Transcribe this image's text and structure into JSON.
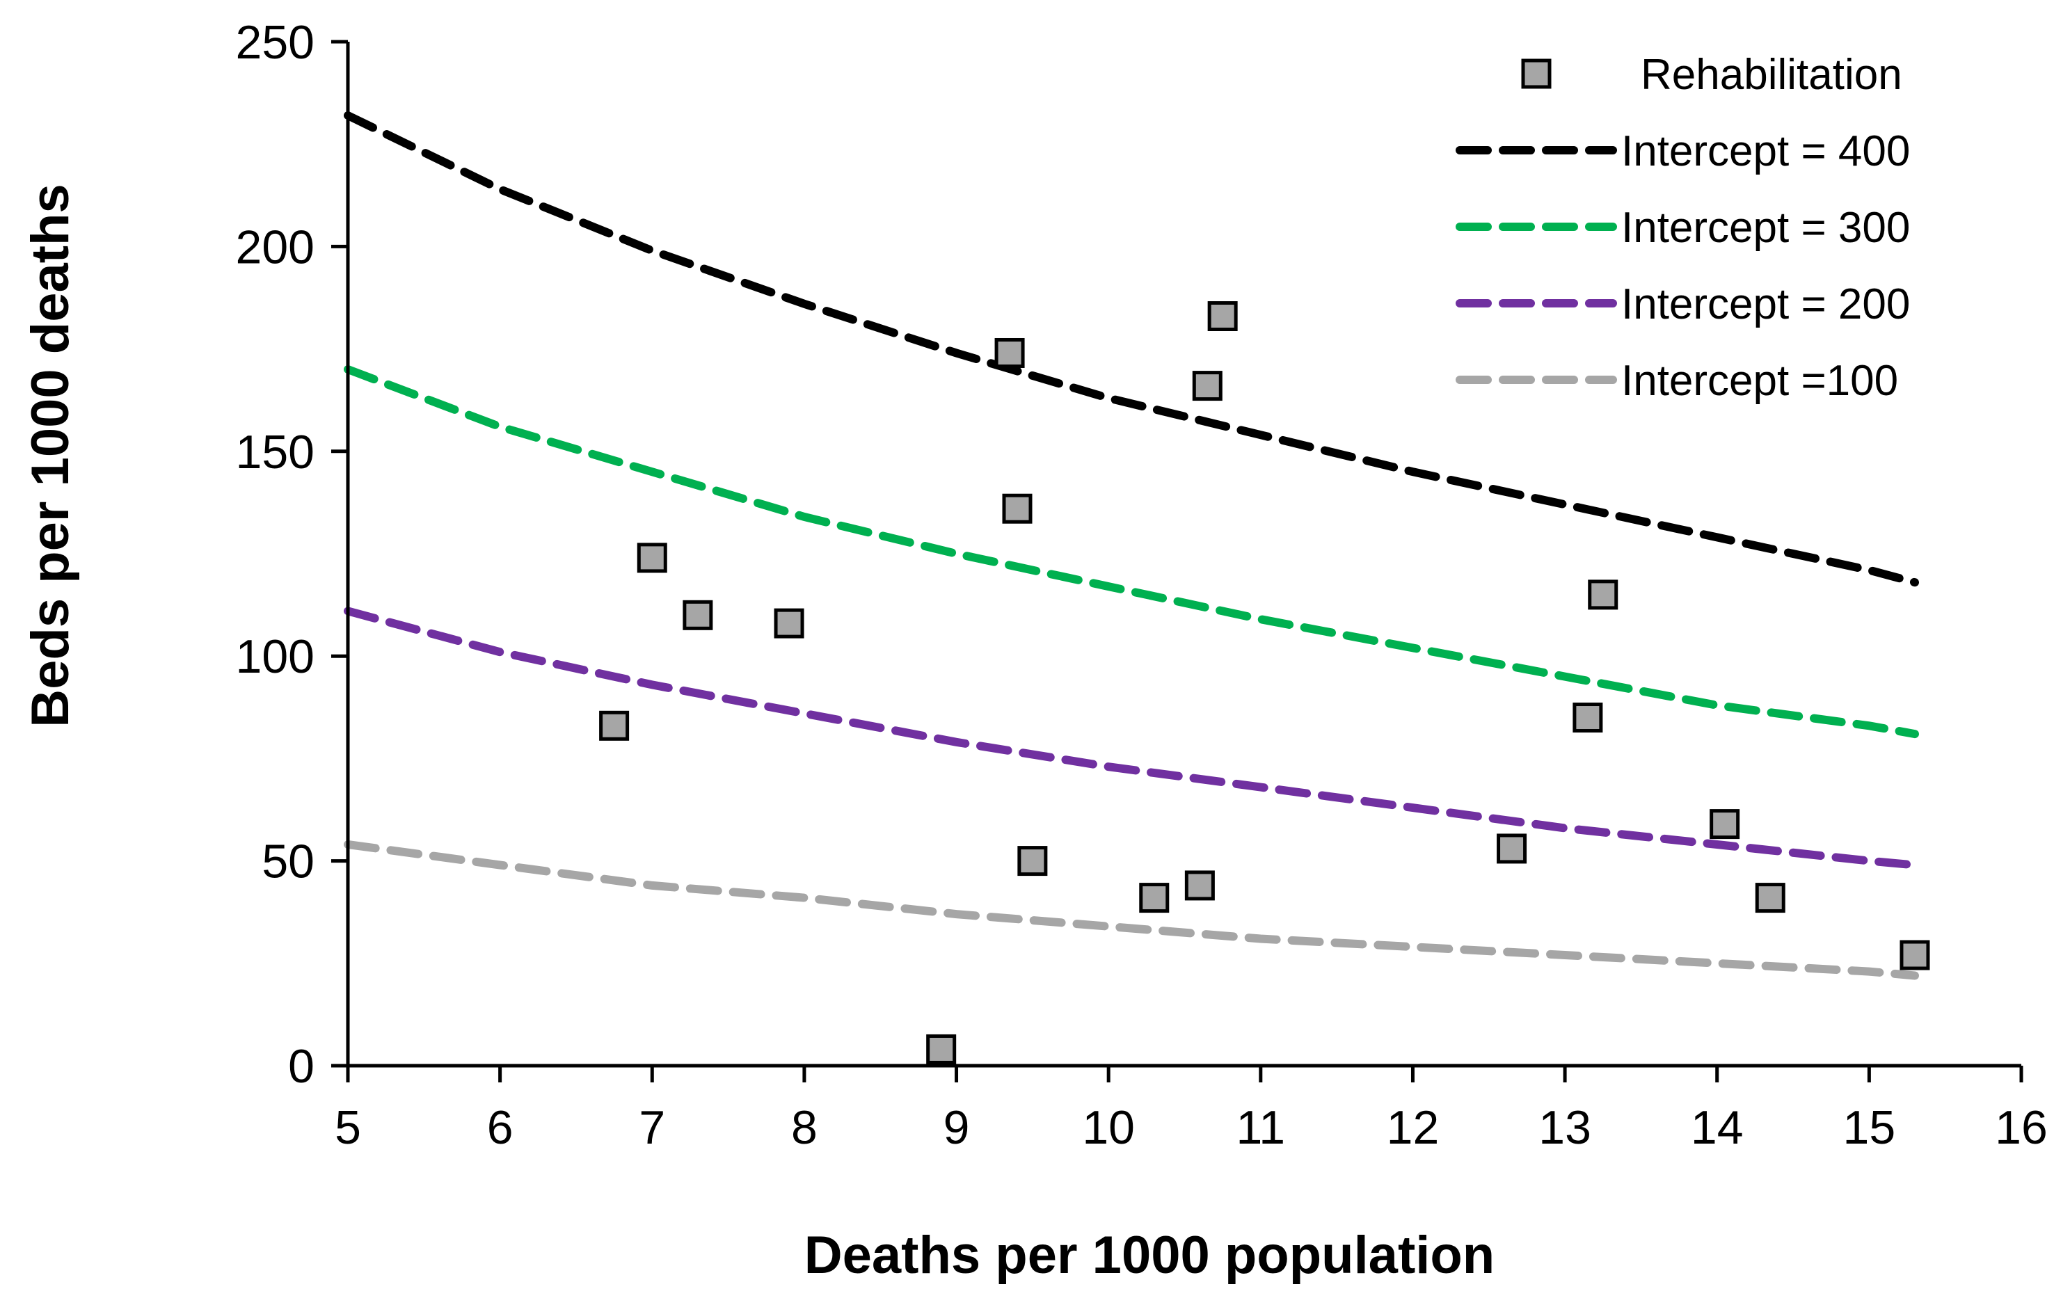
{
  "chart_data": {
    "type": "scatter",
    "title": "",
    "xlabel": "Deaths per 1000 population",
    "ylabel": "Beds per 1000 deaths",
    "xlim": [
      5,
      16
    ],
    "ylim": [
      0,
      250
    ],
    "xticks": [
      5,
      6,
      7,
      8,
      9,
      10,
      11,
      12,
      13,
      14,
      15,
      16
    ],
    "yticks": [
      0,
      50,
      100,
      150,
      200,
      250
    ],
    "grid": false,
    "legend_position": "top-right",
    "series": [
      {
        "name": "Rehabilitation",
        "kind": "scatter",
        "marker": "square",
        "color": "#a6a6a6",
        "points": [
          {
            "x": 6.75,
            "y": 83
          },
          {
            "x": 7.0,
            "y": 124
          },
          {
            "x": 7.3,
            "y": 110
          },
          {
            "x": 7.9,
            "y": 108
          },
          {
            "x": 8.9,
            "y": 4
          },
          {
            "x": 9.35,
            "y": 174
          },
          {
            "x": 9.4,
            "y": 136
          },
          {
            "x": 9.5,
            "y": 50
          },
          {
            "x": 10.3,
            "y": 41
          },
          {
            "x": 10.6,
            "y": 44
          },
          {
            "x": 10.65,
            "y": 166
          },
          {
            "x": 10.75,
            "y": 183
          },
          {
            "x": 12.65,
            "y": 53
          },
          {
            "x": 13.15,
            "y": 85
          },
          {
            "x": 13.25,
            "y": 115
          },
          {
            "x": 14.05,
            "y": 59
          },
          {
            "x": 14.35,
            "y": 41
          },
          {
            "x": 15.3,
            "y": 27
          }
        ]
      },
      {
        "name": "Intercept = 400",
        "kind": "line",
        "dash": true,
        "color": "#000000",
        "x": [
          5,
          6,
          7,
          8,
          9,
          10,
          11,
          12,
          13,
          14,
          15,
          15.3
        ],
        "y": [
          232,
          214,
          199,
          186,
          174,
          163,
          154,
          145,
          137,
          129,
          121,
          118
        ]
      },
      {
        "name": "Intercept = 300",
        "kind": "line",
        "dash": true,
        "color": "#00b050",
        "x": [
          5,
          6,
          7,
          8,
          9,
          10,
          11,
          12,
          13,
          14,
          15,
          15.3
        ],
        "y": [
          170,
          156,
          145,
          134,
          125,
          117,
          109,
          102,
          95,
          88,
          83,
          81
        ]
      },
      {
        "name": "Intercept = 200",
        "kind": "line",
        "dash": true,
        "color": "#7030a0",
        "x": [
          5,
          6,
          7,
          8,
          9,
          10,
          11,
          12,
          13,
          14,
          15,
          15.3
        ],
        "y": [
          111,
          101,
          93,
          86,
          79,
          73,
          68,
          63,
          58,
          54,
          50,
          49
        ]
      },
      {
        "name": "Intercept =100",
        "kind": "line",
        "dash": true,
        "color": "#a6a6a6",
        "x": [
          5,
          6,
          7,
          8,
          9,
          10,
          11,
          12,
          13,
          14,
          15,
          15.3
        ],
        "y": [
          54,
          49,
          44,
          41,
          37,
          34,
          31,
          29,
          27,
          25,
          23,
          22
        ]
      }
    ]
  }
}
